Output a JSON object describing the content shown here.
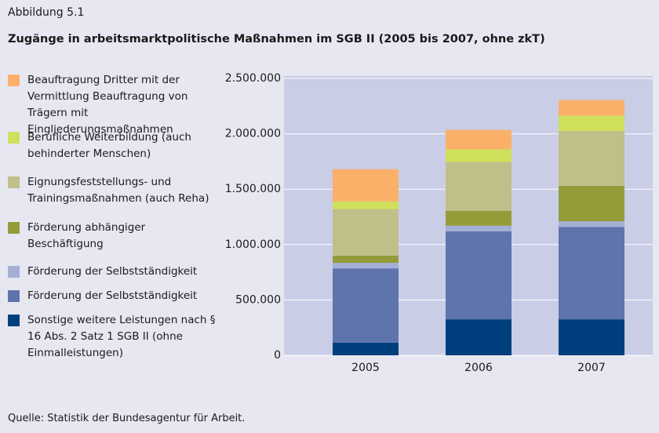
{
  "chart_data": {
    "type": "stacked_bar",
    "label": "Abbildung 5.1",
    "title": "Zugänge in arbeitsmarktpolitische Maßnahmen im SGB II (2005 bis 2007, ohne zkT)",
    "source": "Quelle: Statistik der Bundesagentur für Arbeit.",
    "categories": [
      "2005",
      "2006",
      "2007"
    ],
    "series": [
      {
        "name": "Beauftragung Dritter mit der Vermittlung Beauftragung von Trägern mit Eingliederungsmaßnahmen",
        "color": "#fbb06a",
        "values": [
          290000,
          175000,
          140000
        ]
      },
      {
        "name": "Berufliche Weiterbildung (auch behinderter Menschen)",
        "color": "#cfe05a",
        "values": [
          70000,
          115000,
          140000
        ]
      },
      {
        "name": "Eignungsfeststellungs- und Trainingsmaßnahmen (auch Reha)",
        "color": "#bfbf8a",
        "values": [
          420000,
          440000,
          495000
        ]
      },
      {
        "name": "Förderung abhängiger Beschäftigung",
        "color": "#949c3a",
        "values": [
          65000,
          135000,
          320000
        ]
      },
      {
        "name": "Förderung der Selbstständigkeit",
        "color": "#a5afd6",
        "values": [
          50000,
          50000,
          50000
        ]
      },
      {
        "name": "Förderung der Selbstständigkeit",
        "color": "#5f73ad",
        "values": [
          670000,
          795000,
          835000
        ]
      },
      {
        "name": "Sonstige weitere Leistungen nach § 16 Abs. 2 Satz 1 SGB II (ohne Einmalleistungen)",
        "color": "#003f7d",
        "values": [
          115000,
          325000,
          325000
        ]
      }
    ],
    "ylim": [
      0,
      2500000
    ],
    "yticks": [
      0,
      {
        "value": 500000,
        "label": "500.000"
      },
      {
        "value": 1000000,
        "label": "1.000.000"
      },
      {
        "value": 1500000,
        "label": "1.500.000"
      },
      {
        "value": 2000000,
        "label": "2.000.000"
      },
      {
        "value": 2500000,
        "label": "2.500.000"
      }
    ],
    "grid": true
  }
}
